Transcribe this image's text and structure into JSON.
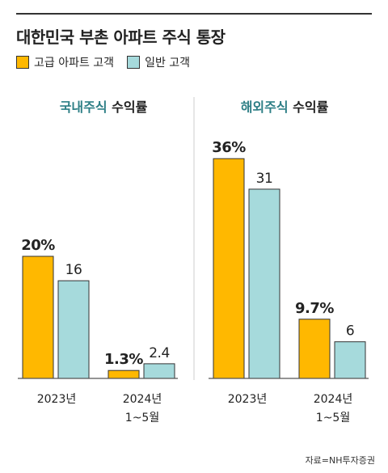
{
  "title": "대한민국 부촌 아파트 주식 통장",
  "legend": [
    {
      "label": "고급 아파트 고객",
      "color": "#FFB800"
    },
    {
      "label": "일반 고객",
      "color": "#A6DADC"
    }
  ],
  "panel_titles": [
    {
      "accent": "국내주식",
      "rest": " 수익률"
    },
    {
      "accent": "해외주식",
      "rest": " 수익률"
    }
  ],
  "colors": {
    "accent": "#2E7F86",
    "bar_edge": "#333333",
    "baseline": "#555555",
    "divider": "#cccccc"
  },
  "chart_data": [
    {
      "type": "bar",
      "title": "국내주식 수익률",
      "categories": [
        "2023년",
        "2024년\n1~5월"
      ],
      "series": [
        {
          "name": "고급 아파트 고객",
          "values": [
            20,
            1.3
          ],
          "labels": [
            "20%",
            "1.3%"
          ]
        },
        {
          "name": "일반 고객",
          "values": [
            16,
            2.4
          ],
          "labels": [
            "16",
            "2.4"
          ]
        }
      ],
      "ylim": [
        0,
        40
      ]
    },
    {
      "type": "bar",
      "title": "해외주식 수익률",
      "categories": [
        "2023년",
        "2024년\n1~5월"
      ],
      "series": [
        {
          "name": "고급 아파트 고객",
          "values": [
            36,
            9.7
          ],
          "labels": [
            "36%",
            "9.7%"
          ]
        },
        {
          "name": "일반 고객",
          "values": [
            31,
            6
          ],
          "labels": [
            "31",
            "6"
          ]
        }
      ],
      "ylim": [
        0,
        40
      ]
    }
  ],
  "source": "자료=NH투자증권"
}
